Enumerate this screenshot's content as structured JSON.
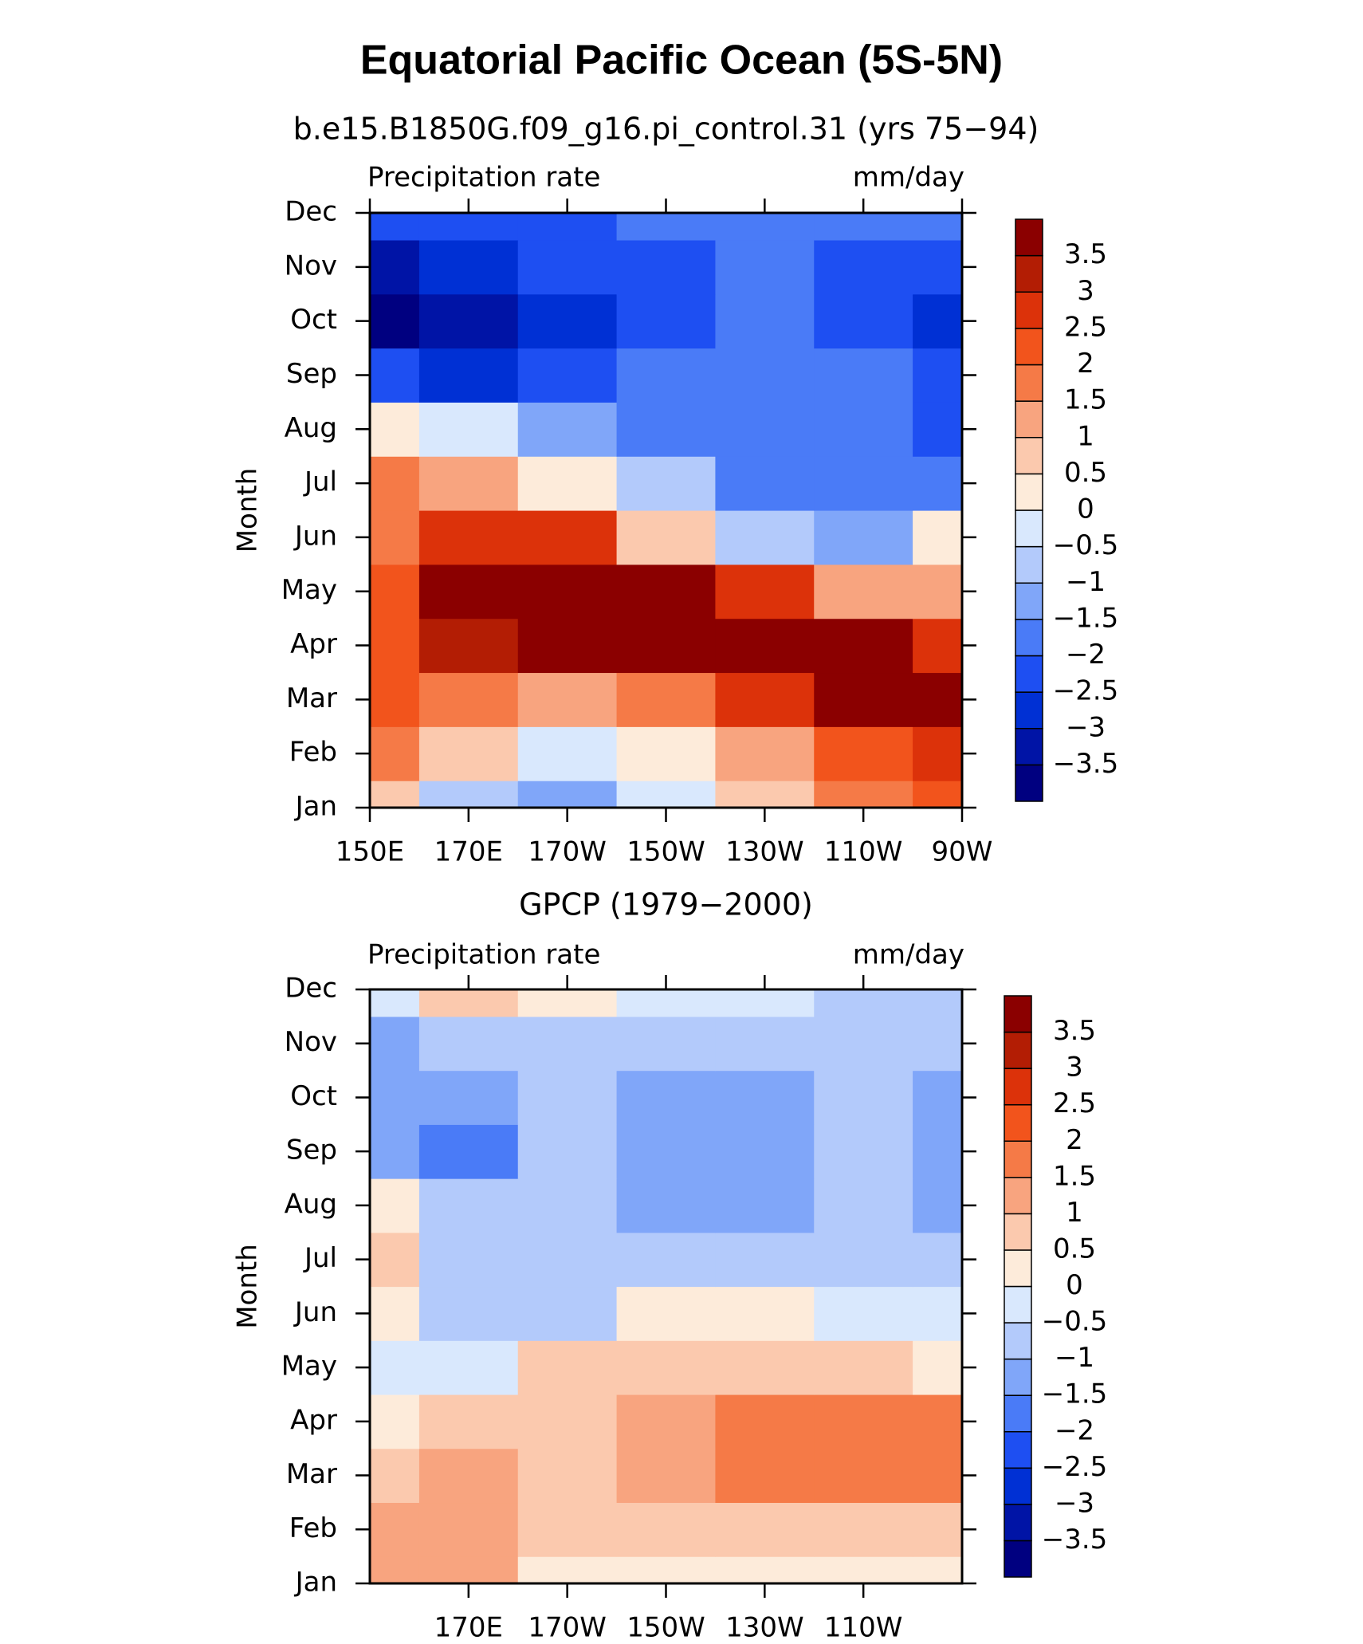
{
  "title": "Equatorial Pacific Ocean (5S-5N)",
  "chart_data": [
    {
      "type": "contour",
      "title": "b.e15.B1850G.f09_g16.pi_control.31 (yrs 75−94)",
      "left_string": "Precipitation rate",
      "right_string": "mm/day",
      "ylabel": "Month",
      "x": [
        150,
        170,
        190,
        210,
        230,
        250,
        270
      ],
      "categories": [
        "Jan",
        "Feb",
        "Mar",
        "Apr",
        "May",
        "Jun",
        "Jul",
        "Aug",
        "Sep",
        "Oct",
        "Nov",
        "Dec"
      ],
      "xlim": [
        150,
        270
      ],
      "xticks": [
        {
          "value": 150,
          "label": "150E"
        },
        {
          "value": 170,
          "label": "170E"
        },
        {
          "value": 190,
          "label": "170W"
        },
        {
          "value": 210,
          "label": "150W"
        },
        {
          "value": 230,
          "label": "130W"
        },
        {
          "value": 250,
          "label": "110W"
        },
        {
          "value": 270,
          "label": "90W"
        }
      ],
      "values": [
        [
          0.8,
          -0.6,
          -1.2,
          -0.3,
          0.7,
          1.6,
          2.3
        ],
        [
          1.8,
          0.6,
          -0.4,
          0.4,
          1.2,
          2.4,
          2.8
        ],
        [
          2.2,
          1.6,
          1.4,
          1.9,
          2.8,
          3.8,
          3.6
        ],
        [
          2.5,
          3.2,
          3.6,
          3.8,
          3.9,
          3.8,
          2.7
        ],
        [
          2.3,
          3.8,
          3.9,
          3.6,
          2.6,
          1.5,
          1.5
        ],
        [
          2.0,
          3.0,
          2.6,
          1.0,
          -0.5,
          -1.2,
          0.3
        ],
        [
          1.8,
          1.2,
          0.2,
          -0.9,
          -1.6,
          -1.8,
          -1.5
        ],
        [
          0.5,
          -0.3,
          -1.0,
          -1.6,
          -1.8,
          -1.9,
          -2.0
        ],
        [
          -2.3,
          -2.5,
          -2.2,
          -1.8,
          -1.8,
          -1.9,
          -2.1
        ],
        [
          -3.6,
          -3.2,
          -2.6,
          -2.0,
          -1.8,
          -2.0,
          -2.7
        ],
        [
          -3.3,
          -2.8,
          -2.3,
          -2.0,
          -1.8,
          -2.0,
          -2.3
        ],
        [
          -2.2,
          -2.2,
          -2.1,
          -1.9,
          -1.6,
          -1.5,
          -1.5
        ]
      ]
    },
    {
      "type": "contour",
      "title": "GPCP (1979−2000)",
      "left_string": "Precipitation rate",
      "right_string": "mm/day",
      "ylabel": "Month",
      "x": [
        150,
        170,
        190,
        210,
        230,
        250,
        270
      ],
      "categories": [
        "Jan",
        "Feb",
        "Mar",
        "Apr",
        "May",
        "Jun",
        "Jul",
        "Aug",
        "Sep",
        "Oct",
        "Nov",
        "Dec"
      ],
      "xlim": [
        150,
        270
      ],
      "xticks": [
        {
          "value": 170,
          "label": "170E"
        },
        {
          "value": 190,
          "label": "170W"
        },
        {
          "value": 210,
          "label": "150W"
        },
        {
          "value": 230,
          "label": "130W"
        },
        {
          "value": 250,
          "label": "110W"
        }
      ],
      "values": [
        [
          1.2,
          1.1,
          0.4,
          0.2,
          0.1,
          0.2,
          0.2
        ],
        [
          1.3,
          1.4,
          0.6,
          0.7,
          0.8,
          0.9,
          1.0
        ],
        [
          0.8,
          1.3,
          0.6,
          1.2,
          1.7,
          1.6,
          1.7
        ],
        [
          0.4,
          0.8,
          0.7,
          1.3,
          1.6,
          1.7,
          1.7
        ],
        [
          -0.3,
          -0.4,
          0.6,
          0.7,
          0.6,
          0.6,
          0.4
        ],
        [
          0.5,
          -0.7,
          -0.6,
          0.2,
          0.3,
          -0.2,
          -0.3
        ],
        [
          0.6,
          -0.7,
          -0.8,
          -0.6,
          -0.6,
          -0.7,
          -0.9
        ],
        [
          0.2,
          -0.8,
          -0.9,
          -1.1,
          -1.1,
          -0.9,
          -1.1
        ],
        [
          -1.3,
          -1.6,
          -0.9,
          -1.1,
          -1.1,
          -0.8,
          -1.1
        ],
        [
          -1.1,
          -1.3,
          -0.8,
          -1.2,
          -1.2,
          -0.9,
          -1.2
        ],
        [
          -1.1,
          -0.9,
          -0.7,
          -0.8,
          -0.8,
          -0.8,
          -0.8
        ],
        [
          -0.3,
          0.7,
          0.2,
          -0.3,
          -0.4,
          -0.5,
          -0.5
        ]
      ]
    }
  ],
  "levels": [
    {
      "value": -3.5,
      "label": "−3.5"
    },
    {
      "value": -3,
      "label": "−3"
    },
    {
      "value": -2.5,
      "label": "−2.5"
    },
    {
      "value": -2,
      "label": "−2"
    },
    {
      "value": -1.5,
      "label": "−1.5"
    },
    {
      "value": -1,
      "label": "−1"
    },
    {
      "value": -0.5,
      "label": "−0.5"
    },
    0,
    0.5,
    1,
    1.5,
    2,
    2.5,
    3,
    3.5
  ],
  "colors": [
    "#000080",
    "#0014a6",
    "#0030d4",
    "#1e4ff2",
    "#4a7bf7",
    "#80a6f9",
    "#b3cafb",
    "#d9e8fd",
    "#fdebda",
    "#fbc9ae",
    "#f8a47f",
    "#f57a47",
    "#f2541c",
    "#dc320a",
    "#b31d04",
    "#8b0000"
  ]
}
